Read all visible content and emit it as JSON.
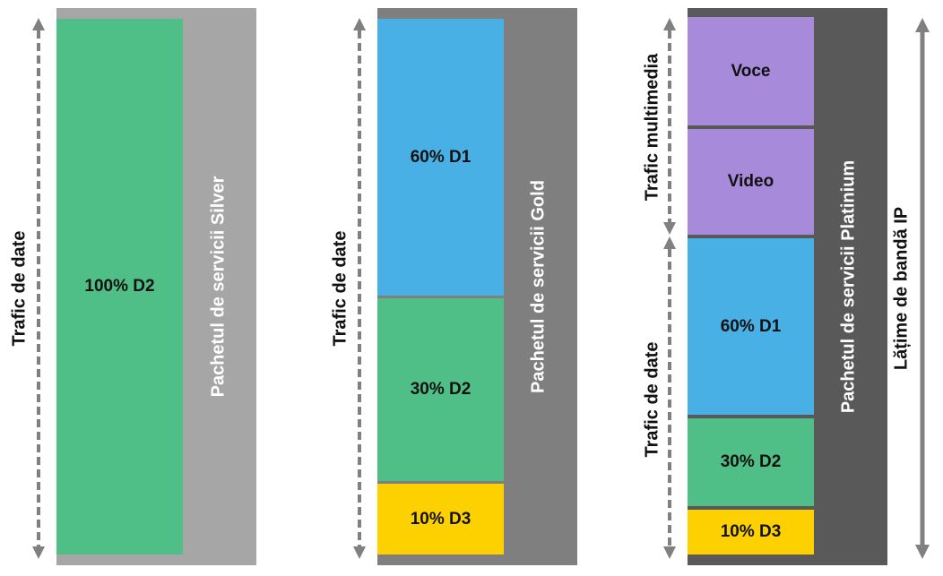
{
  "colors": {
    "silver_bg": "#a6a6a6",
    "gold_bg": "#7f7f7f",
    "platinum_bg": "#595959",
    "d1": "#48b0e4",
    "d2": "#4fbf87",
    "d3": "#fdd100",
    "multimedia": "#a78ad9",
    "arrow": "#808080"
  },
  "packages": [
    {
      "name": "Pachetul de servicii Silver",
      "data_label": "Trafic de date",
      "segments": [
        {
          "label": "100% D2",
          "share": 100
        }
      ]
    },
    {
      "name": "Pachetul de servicii Gold",
      "data_label": "Trafic de date",
      "segments": [
        {
          "label": "60% D1",
          "share": 60
        },
        {
          "label": "30% D2",
          "share": 30
        },
        {
          "label": "10% D3",
          "share": 10
        }
      ]
    },
    {
      "name": "Pachetul de servicii Platinium",
      "multimedia_label": "Trafic multimedia",
      "data_label": "Trafic de date",
      "bandwidth_label": "Lățime de bandă IP",
      "multimedia_segments": [
        {
          "label": "Voce"
        },
        {
          "label": "Video"
        }
      ],
      "segments": [
        {
          "label": "60% D1",
          "share": 60
        },
        {
          "label": "30% D2",
          "share": 30
        },
        {
          "label": "10% D3",
          "share": 10
        }
      ]
    }
  ]
}
